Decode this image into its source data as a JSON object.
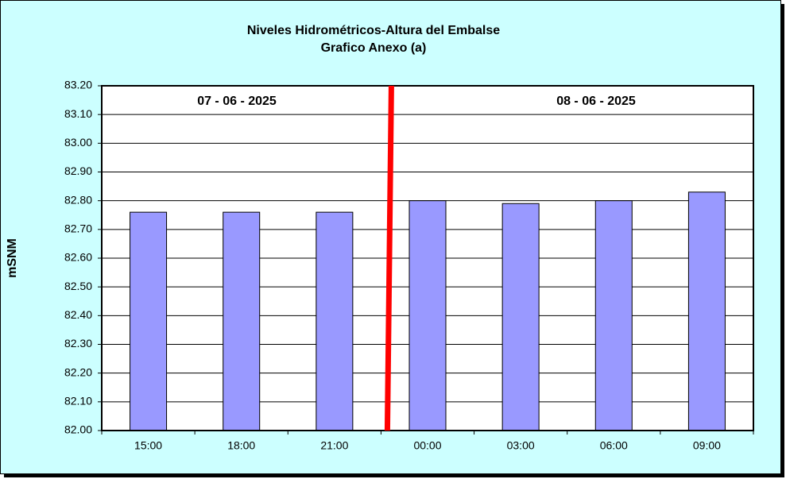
{
  "chart_data": {
    "type": "bar",
    "title": "Niveles Hidrométricos-Altura del Embalse",
    "subtitle": "Grafico Anexo (a)",
    "y_label": "mSNM",
    "annotations": [
      "07 - 06 - 2025",
      "08 - 06 - 2025"
    ],
    "categories": [
      "15:00",
      "18:00",
      "21:00",
      "00:00",
      "03:00",
      "06:00",
      "09:00"
    ],
    "values": [
      82.76,
      82.76,
      82.76,
      82.8,
      82.79,
      82.8,
      82.83
    ],
    "color": "#9999ff",
    "ylim": [
      82.0,
      83.2
    ],
    "yticks": [
      {
        "value": 82.0,
        "label": "82.00"
      },
      {
        "value": 82.1,
        "label": "82.10"
      },
      {
        "value": 82.2,
        "label": "82.20"
      },
      {
        "value": 82.3,
        "label": "82.30"
      },
      {
        "value": 82.4,
        "label": "82.40"
      },
      {
        "value": 82.5,
        "label": "82.50"
      },
      {
        "value": 82.6,
        "label": "82.60"
      },
      {
        "value": 82.7,
        "label": "82.70"
      },
      {
        "value": 82.8,
        "label": "82.80"
      },
      {
        "value": 82.9,
        "label": "82.90"
      },
      {
        "value": 83.0,
        "label": "83.00"
      },
      {
        "value": 83.1,
        "label": "83.10"
      },
      {
        "value": 83.2,
        "label": "83.20"
      }
    ],
    "grid": true
  }
}
